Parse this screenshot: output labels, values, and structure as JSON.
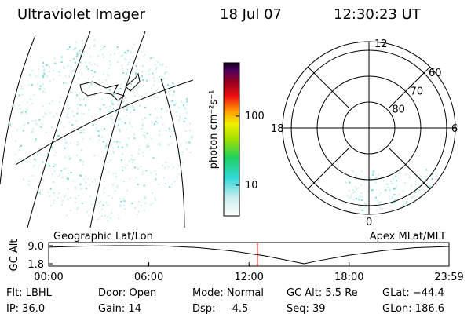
{
  "header": {
    "title": "Ultraviolet Imager",
    "date": "18 Jul 07",
    "time": "12:30:23 UT"
  },
  "colorbar": {
    "label": "photon cm⁻²s⁻¹",
    "ticks": [
      10,
      100
    ],
    "range": [
      3.6,
      590
    ]
  },
  "right_panel": {
    "mlat_rings": [
      80,
      70,
      60
    ],
    "mlt_labels": {
      "top": "12",
      "right": "6",
      "bottom": "0",
      "left": "18"
    }
  },
  "chart_data": {
    "type": "line",
    "title_left": "Geographic Lat/Lon",
    "title_right": "Apex MLat/MLT",
    "y_label": "GC Alt",
    "x": [
      0,
      2,
      4,
      5.5,
      7,
      9,
      11,
      13,
      14.5,
      15.3,
      16,
      18,
      20,
      22,
      23.983
    ],
    "series": [
      {
        "name": "GC Alt",
        "color": "#000000",
        "values": [
          8.4,
          8.8,
          9.0,
          9.0,
          8.9,
          8.2,
          6.9,
          4.9,
          2.9,
          1.8,
          2.8,
          5.2,
          7.0,
          8.2,
          8.7
        ]
      }
    ],
    "xlim": [
      0,
      23.983
    ],
    "ylim": [
      1.8,
      9.0
    ],
    "xticks": [
      {
        "value": 0,
        "label": "00:00"
      },
      {
        "value": 6,
        "label": "06:00"
      },
      {
        "value": 12,
        "label": "12:00"
      },
      {
        "value": 18,
        "label": "18:00"
      },
      {
        "value": 23.983,
        "label": "23:59"
      }
    ],
    "yticks": [
      1.8,
      {
        "value": 9,
        "label": "9.0"
      }
    ],
    "marker": {
      "x": 12.506,
      "color": "#e00000"
    }
  },
  "status": {
    "rows": [
      [
        "Flt: LBHL",
        "Door: Open",
        "Mode: Normal",
        "GC Alt: 5.5 Re",
        "GLat: −44.4"
      ],
      [
        "IP: 36.0",
        "Gain: 14",
        "Dsp:    -4.5",
        "Seq: 39",
        "GLon: 186.6"
      ]
    ]
  }
}
